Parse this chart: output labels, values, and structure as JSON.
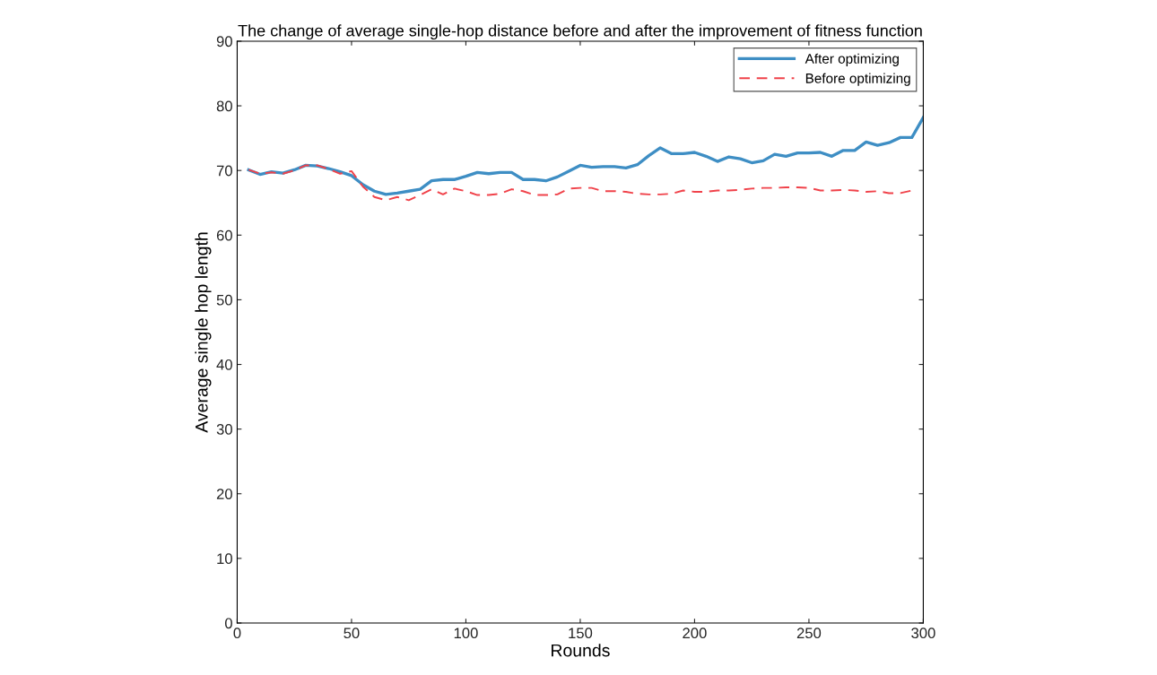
{
  "chart_data": {
    "type": "line",
    "title": "The change of average single-hop distance before and after the improvement of fitness function",
    "xlabel": "Rounds",
    "ylabel": "Average single hop length",
    "xlim": [
      0,
      300
    ],
    "xticks": [
      0,
      50,
      100,
      150,
      200,
      250,
      300
    ],
    "ylim": [
      0,
      90
    ],
    "yticks": [
      0,
      10,
      20,
      30,
      40,
      50,
      60,
      70,
      80,
      90
    ],
    "grid": false,
    "legend": "top right",
    "series": [
      {
        "name": "After optimizing",
        "color": "#3e8ec4",
        "line_style": "solid",
        "x": [
          5,
          10,
          15,
          20,
          25,
          30,
          35,
          40,
          45,
          50,
          55,
          60,
          65,
          70,
          75,
          80,
          85,
          90,
          95,
          100,
          105,
          110,
          115,
          120,
          125,
          130,
          135,
          140,
          145,
          150,
          155,
          160,
          165,
          170,
          175,
          180,
          185,
          190,
          195,
          200,
          205,
          210,
          215,
          220,
          225,
          230,
          235,
          240,
          245,
          250,
          255,
          260,
          265,
          270,
          275,
          280,
          285,
          290,
          295,
          300
        ],
        "values": [
          70.1,
          69.4,
          69.8,
          69.6,
          70.1,
          70.8,
          70.7,
          70.3,
          69.8,
          69.2,
          67.8,
          66.8,
          66.3,
          66.5,
          66.8,
          67.1,
          68.4,
          68.6,
          68.6,
          69.1,
          69.7,
          69.5,
          69.7,
          69.7,
          68.6,
          68.6,
          68.4,
          69.0,
          69.9,
          70.8,
          70.5,
          70.6,
          70.6,
          70.4,
          70.9,
          72.3,
          73.5,
          72.6,
          72.6,
          72.8,
          72.2,
          71.4,
          72.1,
          71.8,
          71.2,
          71.5,
          72.5,
          72.2,
          72.7,
          72.7,
          72.8,
          72.2,
          73.1,
          73.1,
          74.4,
          73.9,
          74.3,
          75.1,
          75.1,
          78.2
        ]
      },
      {
        "name": "Before optimizing",
        "color": "#f0424a",
        "line_style": "dashed",
        "x": [
          5,
          10,
          15,
          20,
          25,
          30,
          35,
          40,
          45,
          50,
          55,
          60,
          65,
          70,
          75,
          80,
          85,
          90,
          95,
          100,
          105,
          110,
          115,
          120,
          125,
          130,
          135,
          140,
          145,
          150,
          155,
          160,
          165,
          170,
          175,
          180,
          185,
          190,
          195,
          200,
          205,
          210,
          215,
          220,
          225,
          230,
          235,
          240,
          245,
          250,
          255,
          260,
          265,
          270,
          275,
          280,
          285,
          290,
          295
        ],
        "values": [
          70.1,
          69.5,
          69.7,
          69.5,
          70.0,
          70.8,
          70.8,
          70.2,
          69.5,
          69.9,
          67.5,
          65.9,
          65.4,
          65.9,
          65.4,
          66.2,
          67.1,
          66.3,
          67.2,
          66.8,
          66.2,
          66.2,
          66.4,
          67.1,
          66.8,
          66.2,
          66.2,
          66.3,
          67.2,
          67.3,
          67.3,
          66.8,
          66.8,
          66.7,
          66.4,
          66.3,
          66.3,
          66.4,
          66.9,
          66.7,
          66.7,
          66.9,
          66.9,
          67.0,
          67.2,
          67.3,
          67.3,
          67.4,
          67.4,
          67.3,
          66.9,
          66.9,
          67.0,
          66.9,
          66.7,
          66.8,
          66.5,
          66.5,
          66.9
        ]
      }
    ]
  }
}
